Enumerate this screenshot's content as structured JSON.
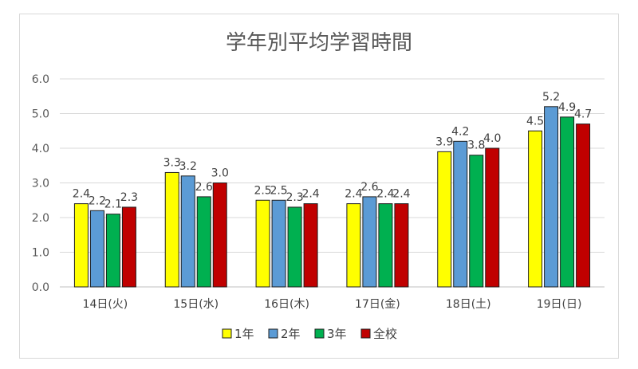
{
  "chart_data": {
    "type": "bar",
    "title": "学年別平均学習時間",
    "categories": [
      "14日(火)",
      "15日(水)",
      "16日(木)",
      "17日(金)",
      "18日(土)",
      "19日(日)"
    ],
    "series": [
      {
        "name": "1年",
        "color": "#ffff00",
        "values": [
          2.4,
          3.3,
          2.5,
          2.4,
          3.9,
          4.5
        ]
      },
      {
        "name": "2年",
        "color": "#5b9bd5",
        "values": [
          2.2,
          3.2,
          2.5,
          2.6,
          4.2,
          5.2
        ]
      },
      {
        "name": "3年",
        "color": "#00b050",
        "values": [
          2.1,
          2.6,
          2.3,
          2.4,
          3.8,
          4.9
        ]
      },
      {
        "name": "全校",
        "color": "#c00000",
        "values": [
          2.3,
          3.0,
          2.4,
          2.4,
          4.0,
          4.7
        ]
      }
    ],
    "ylim": [
      0,
      6
    ],
    "yticks": [
      "0.0",
      "1.0",
      "2.0",
      "3.0",
      "4.0",
      "5.0",
      "6.0"
    ],
    "grid": true,
    "legend": "bottom"
  }
}
